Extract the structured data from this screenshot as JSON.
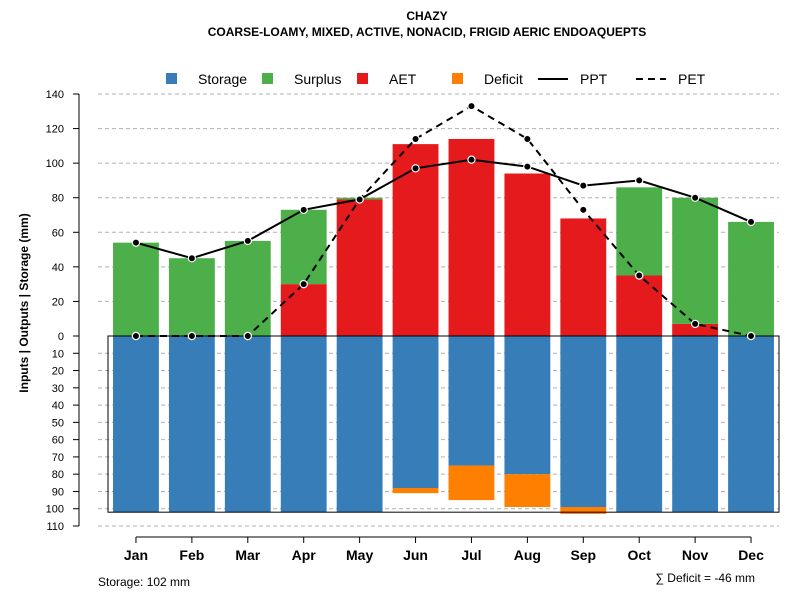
{
  "chart_data": {
    "type": "bar",
    "title": "CHAZY",
    "subtitle": "COARSE-LOAMY, MIXED, ACTIVE, NONACID, FRIGID AERIC ENDOAQUEPTS",
    "ylabel": "Inputs | Outputs | Storage    (mm)",
    "categories": [
      "Jan",
      "Feb",
      "Mar",
      "Apr",
      "May",
      "Jun",
      "Jul",
      "Aug",
      "Sep",
      "Oct",
      "Nov",
      "Dec"
    ],
    "ylim_top": [
      0,
      140
    ],
    "ylim_bottom": [
      0,
      110
    ],
    "yticks_top": [
      "0",
      "20",
      "40",
      "60",
      "80",
      "100",
      "120",
      "140"
    ],
    "yticks_bottom": [
      "10",
      "20",
      "30",
      "40",
      "50",
      "60",
      "70",
      "80",
      "90",
      "100",
      "110"
    ],
    "legend": [
      "Storage",
      "Surplus",
      "AET",
      "Deficit",
      "PPT",
      "PET"
    ],
    "colors": {
      "storage": "#377eb8",
      "surplus": "#4daf4a",
      "aet": "#e41a1c",
      "deficit": "#ff7f00",
      "line": "#000000"
    },
    "series": [
      {
        "name": "Storage",
        "values": [
          102,
          102,
          102,
          102,
          102,
          88,
          75,
          80,
          99,
          102,
          102,
          102
        ]
      },
      {
        "name": "Surplus",
        "values": [
          54,
          45,
          55,
          43,
          1,
          0,
          0,
          0,
          0,
          51,
          73,
          66
        ]
      },
      {
        "name": "AET",
        "values": [
          0,
          0,
          0,
          30,
          79,
          111,
          114,
          94,
          68,
          35,
          7,
          0
        ]
      },
      {
        "name": "Deficit",
        "values": [
          0,
          0,
          0,
          0,
          0,
          3,
          20,
          19,
          4,
          0,
          0,
          0
        ]
      },
      {
        "name": "PPT",
        "values": [
          54,
          45,
          55,
          73,
          79,
          97,
          102,
          98,
          87,
          90,
          80,
          66
        ]
      },
      {
        "name": "PET",
        "values": [
          0,
          0,
          0,
          30,
          79,
          114,
          133,
          114,
          73,
          35,
          7,
          0
        ]
      }
    ],
    "storage_capacity": 102,
    "footnote_storage": "Storage: 102 mm",
    "footnote_deficit": "∑ Deficit = -46 mm"
  }
}
